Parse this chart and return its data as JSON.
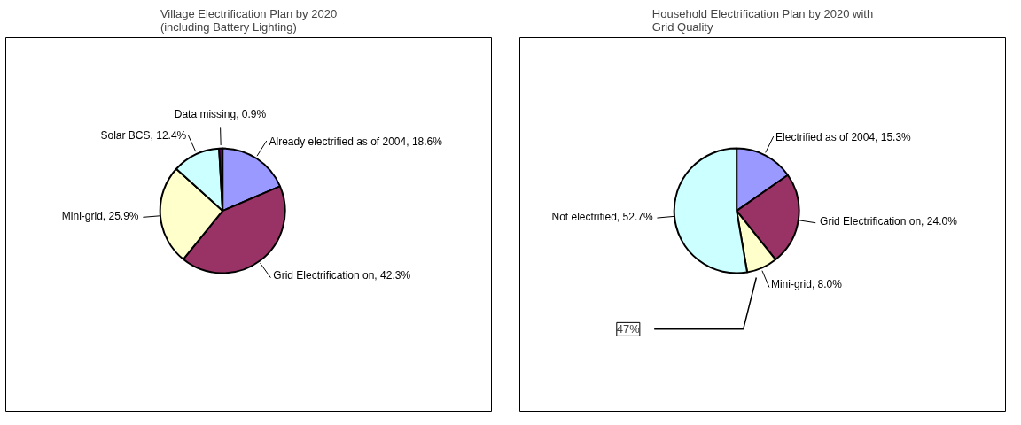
{
  "chart_data": [
    {
      "type": "pie",
      "title": "Village Electrification Plan by 2020 (including Battery Lighting)",
      "categories": [
        "Already electrified as of 2004",
        "Grid Electrification on",
        "Mini-grid",
        "Solar BCS",
        "Data missing"
      ],
      "values": [
        18.6,
        42.3,
        25.9,
        12.4,
        0.9
      ],
      "value_labels": [
        "18.6%",
        "42.3%",
        "25.9%",
        "12.4%",
        "0.9%"
      ],
      "colors": [
        "#9999ff",
        "#993366",
        "#ffffcc",
        "#ccffff",
        "#660066"
      ],
      "legend": false
    },
    {
      "type": "pie",
      "title": "Household Electrification Plan by 2020 with Grid Quality",
      "categories": [
        "Electrified as of 2004",
        "Grid Electrification on",
        "Mini-grid",
        "Not electrified"
      ],
      "values": [
        15.3,
        24.0,
        8.0,
        52.7
      ],
      "value_labels": [
        "15.3%",
        "24.0%",
        "8.0%",
        "52.7%"
      ],
      "colors": [
        "#9999ff",
        "#993366",
        "#ffffcc",
        "#ccffff"
      ],
      "annotations": [
        "47%"
      ],
      "legend": false
    }
  ]
}
